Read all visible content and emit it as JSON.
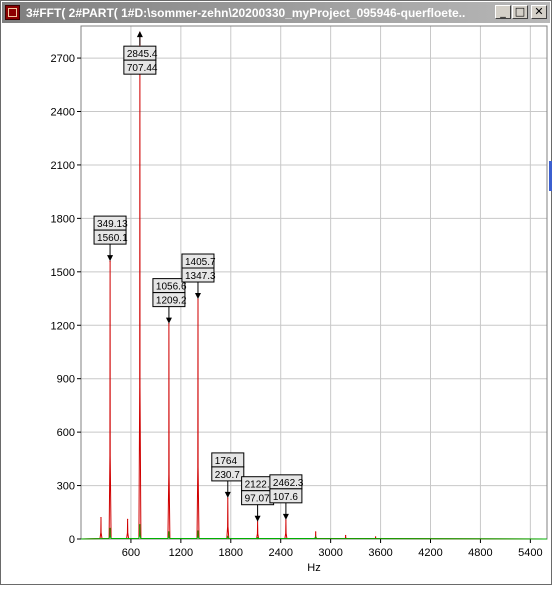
{
  "window": {
    "title": "3#FFT( 2#PART( 1#D:\\sommer-zehn\\20200330_myProject_095946-querfloete...",
    "minimize_label": "_",
    "maximize_label": "□",
    "close_label": "✕",
    "icon": "app-icon"
  },
  "chart_data": {
    "type": "line",
    "xlabel": "Hz",
    "ylabel": "",
    "title": "",
    "xlim": [
      0,
      5600
    ],
    "ylim": [
      0,
      2880
    ],
    "x_ticks": [
      600,
      1200,
      1800,
      2400,
      3000,
      3600,
      4200,
      4800,
      5400
    ],
    "y_ticks": [
      0,
      300,
      600,
      900,
      1200,
      1500,
      1800,
      2100,
      2400,
      2700
    ],
    "grid": true,
    "series": [
      {
        "color": "#d00000",
        "peaks": [
          {
            "x": 240,
            "y": 120
          },
          {
            "x": 349.13,
            "y": 1560.1
          },
          {
            "x": 560,
            "y": 110
          },
          {
            "x": 707.44,
            "y": 2845.4
          },
          {
            "x": 1056.6,
            "y": 1209.2
          },
          {
            "x": 1405.7,
            "y": 1347.3
          },
          {
            "x": 1764,
            "y": 230.7
          },
          {
            "x": 2122.3,
            "y": 97.077
          },
          {
            "x": 2462.3,
            "y": 107.6
          },
          {
            "x": 2820,
            "y": 40
          },
          {
            "x": 3180,
            "y": 20
          },
          {
            "x": 3540,
            "y": 12
          }
        ]
      },
      {
        "color": "#00b000",
        "peaks": [
          {
            "x": 349,
            "y": 60
          },
          {
            "x": 707,
            "y": 80
          },
          {
            "x": 1056,
            "y": 40
          },
          {
            "x": 1406,
            "y": 45
          },
          {
            "x": 1764,
            "y": 15
          },
          {
            "x": 2122,
            "y": 8
          },
          {
            "x": 2820,
            "y": 12
          }
        ]
      }
    ],
    "annotations": [
      {
        "x": 349.13,
        "y": 1560.1,
        "top": "349.13",
        "bottom": "1560.1",
        "arrow": "down"
      },
      {
        "x": 707.44,
        "y": 2845.4,
        "top": "2845.4",
        "bottom": "707.44",
        "arrow": "up"
      },
      {
        "x": 1056.6,
        "y": 1209.2,
        "top": "1056.6",
        "bottom": "1209.2",
        "arrow": "down"
      },
      {
        "x": 1405.7,
        "y": 1347.3,
        "top": "1405.7",
        "bottom": "1347.3",
        "arrow": "down"
      },
      {
        "x": 1764,
        "y": 230.7,
        "top": "1764",
        "bottom": "230.7",
        "arrow": "down"
      },
      {
        "x": 2122.3,
        "y": 97.077,
        "top": "2122.3",
        "bottom": "97.077",
        "arrow": "down"
      },
      {
        "x": 2462.3,
        "y": 107.6,
        "top": "2462.3",
        "bottom": "107.6",
        "arrow": "down"
      }
    ]
  }
}
